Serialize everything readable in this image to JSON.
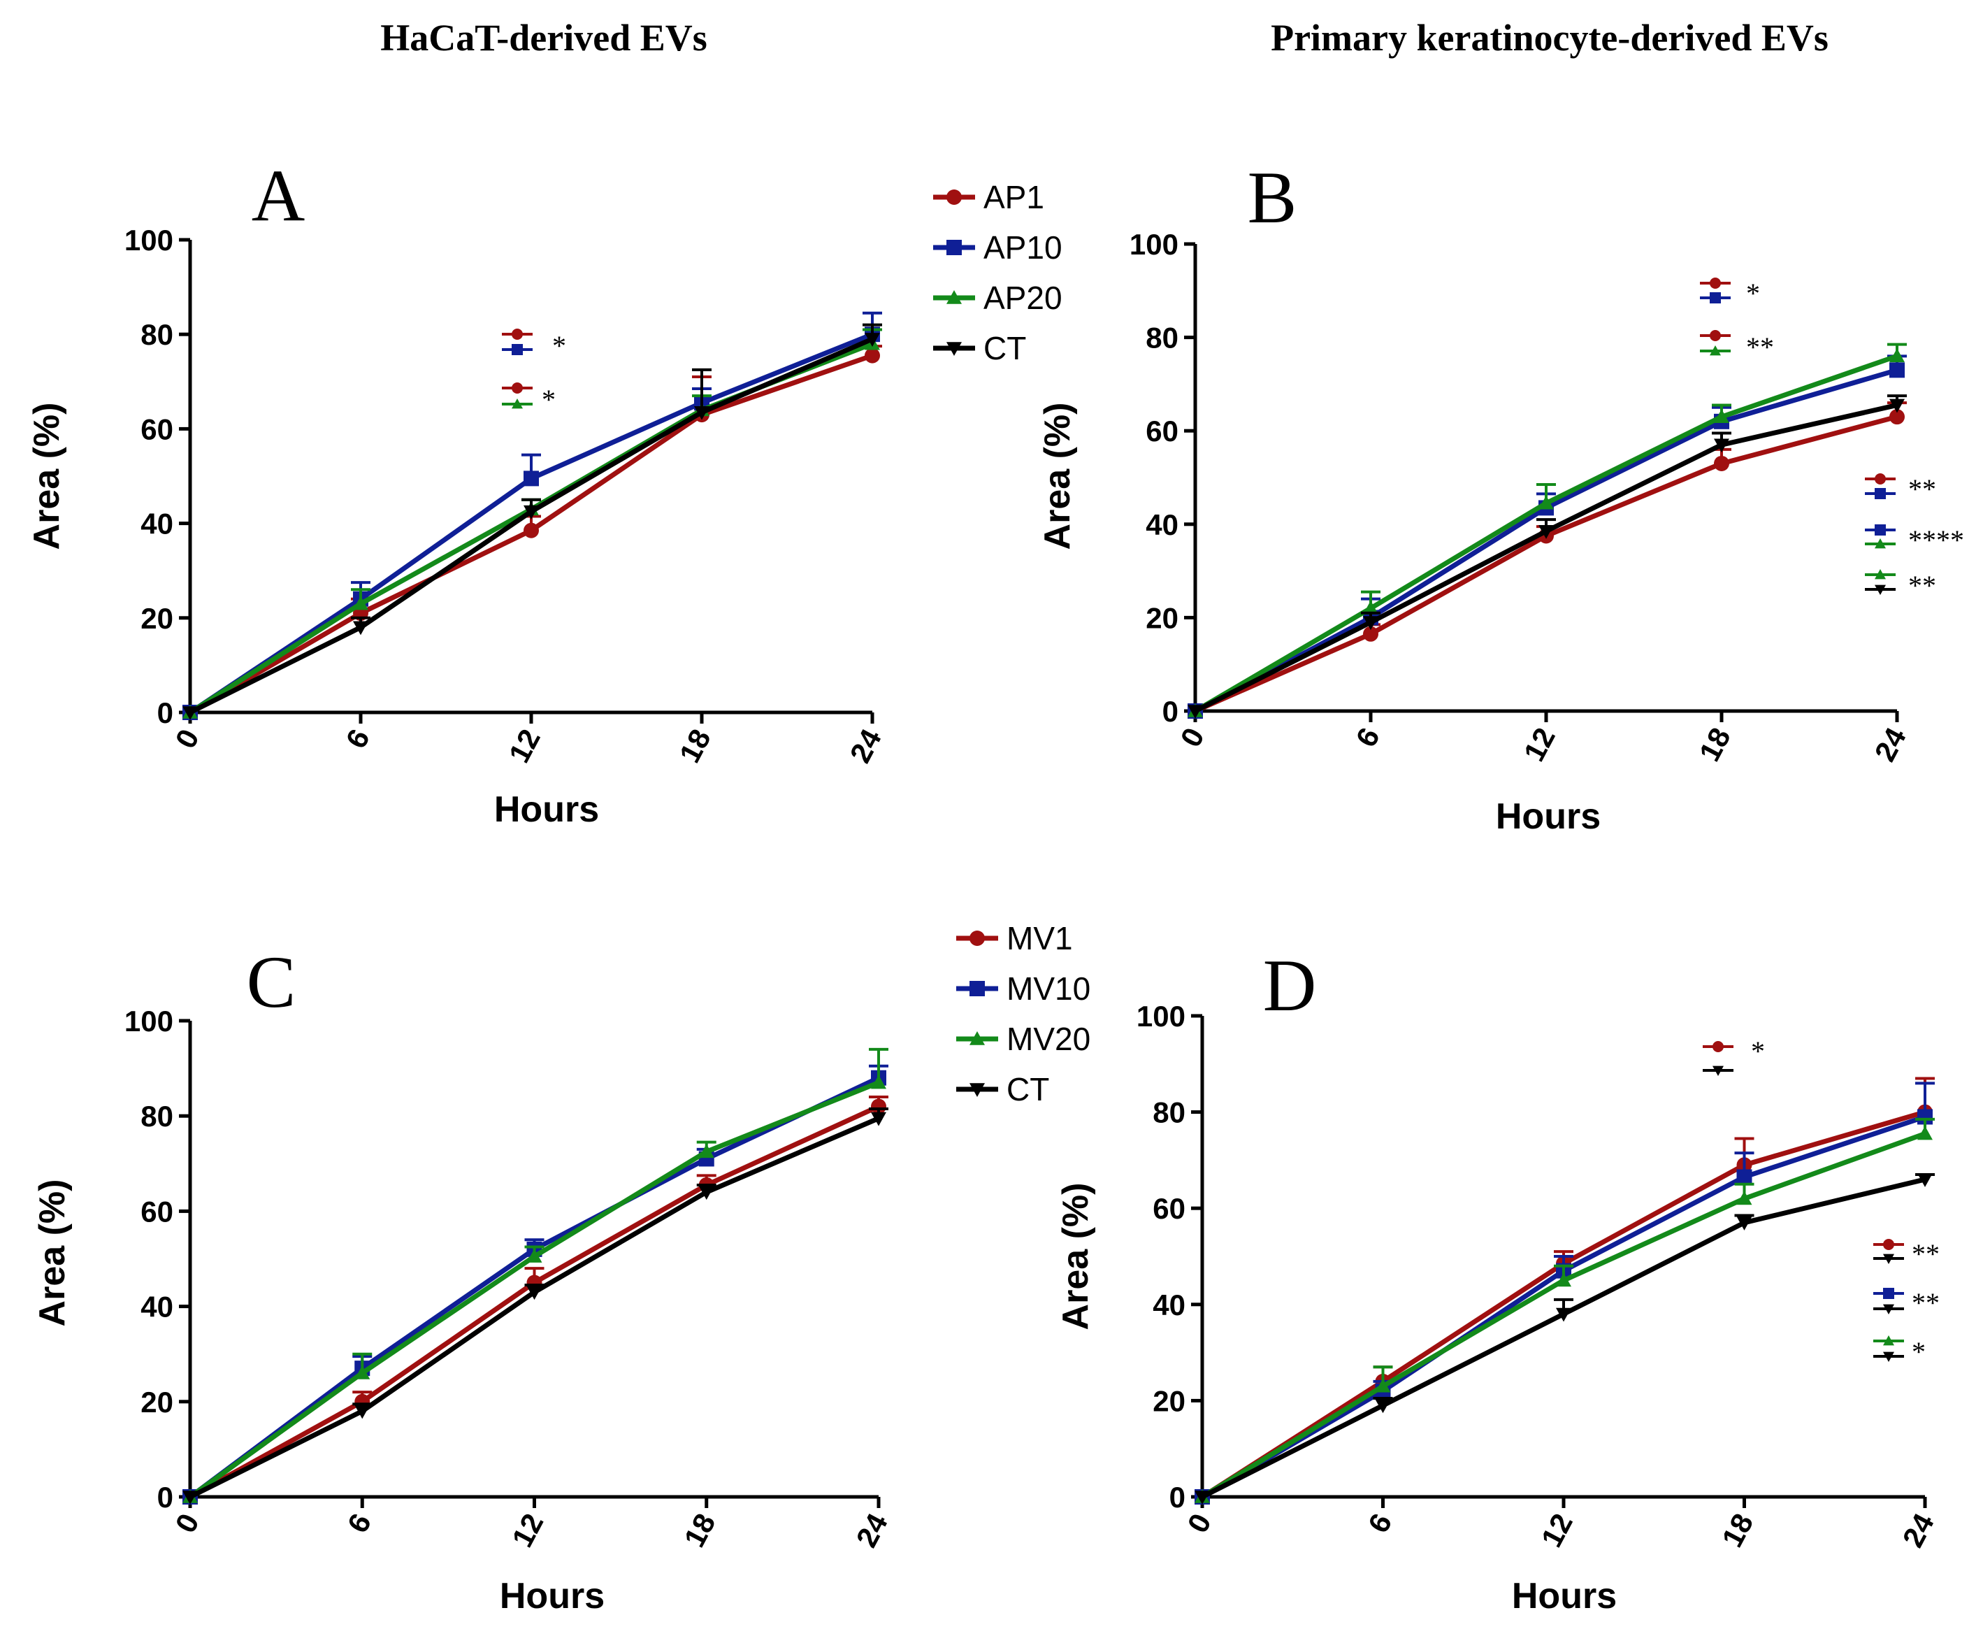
{
  "headings": {
    "left": "HaCaT-derived EVs",
    "right": "Primary keratinocyte-derived EVs"
  },
  "colors": {
    "red": "#a01010",
    "blue": "#0f1f96",
    "green": "#138a1a",
    "black": "#000000"
  },
  "chart_data": [
    {
      "id": "A",
      "type": "line",
      "title": "A",
      "xlabel": "Hours",
      "ylabel": "Area (%)",
      "categories": [
        "0",
        "6",
        "12",
        "18",
        "24"
      ],
      "x": [
        0,
        6,
        12,
        18,
        24
      ],
      "yticks": [
        "0",
        "20",
        "40",
        "60",
        "80",
        "100"
      ],
      "ylim": [
        0,
        100
      ],
      "legend_position": "top-right",
      "series": [
        {
          "name": "AP1",
          "color": "red",
          "marker": "circle",
          "values": [
            0,
            21,
            38.5,
            63,
            75.5
          ],
          "errors": [
            0,
            3,
            3,
            8,
            2
          ]
        },
        {
          "name": "AP10",
          "color": "blue",
          "marker": "square",
          "values": [
            0,
            24,
            49.5,
            65.5,
            80
          ],
          "errors": [
            0,
            3.5,
            5,
            3,
            4.5
          ]
        },
        {
          "name": "AP20",
          "color": "green",
          "marker": "triangle",
          "values": [
            0,
            23,
            43,
            64,
            78
          ],
          "errors": [
            0,
            3,
            2,
            3,
            3
          ]
        },
        {
          "name": "CT",
          "color": "black",
          "marker": "triangle-down",
          "values": [
            0,
            18,
            42.5,
            63.5,
            79
          ],
          "errors": [
            0,
            2,
            2.5,
            9,
            3
          ]
        }
      ],
      "annotations": [
        {
          "pair": [
            "red",
            "blue"
          ],
          "markers": [
            "circle",
            "square"
          ],
          "text": "*"
        },
        {
          "pair": [
            "red",
            "green"
          ],
          "markers": [
            "circle",
            "triangle"
          ],
          "text": "*"
        }
      ]
    },
    {
      "id": "B",
      "type": "line",
      "title": "B",
      "xlabel": "Hours",
      "ylabel": "Area (%)",
      "categories": [
        "0",
        "6",
        "12",
        "18",
        "24"
      ],
      "x": [
        0,
        6,
        12,
        18,
        24
      ],
      "yticks": [
        "0",
        "20",
        "40",
        "60",
        "80",
        "100"
      ],
      "ylim": [
        0,
        100
      ],
      "legend_position": "none",
      "series": [
        {
          "name": "AP1",
          "color": "red",
          "marker": "circle",
          "values": [
            0,
            16.5,
            37.5,
            53,
            63
          ],
          "errors": [
            0,
            2,
            2,
            3,
            3
          ]
        },
        {
          "name": "AP10",
          "color": "blue",
          "marker": "square",
          "values": [
            0,
            20,
            43.5,
            62,
            73
          ],
          "errors": [
            0,
            4,
            3,
            3,
            3
          ]
        },
        {
          "name": "AP20",
          "color": "green",
          "marker": "triangle",
          "values": [
            0,
            22,
            44.5,
            63,
            76
          ],
          "errors": [
            0,
            3.5,
            4,
            2.5,
            2.5
          ]
        },
        {
          "name": "CT",
          "color": "black",
          "marker": "triangle-down",
          "values": [
            0,
            19,
            38.5,
            57,
            65.5
          ],
          "errors": [
            0,
            2,
            2.5,
            2.5,
            2
          ]
        }
      ],
      "annotations": [
        {
          "pair": [
            "red",
            "blue"
          ],
          "markers": [
            "circle",
            "square"
          ],
          "text": "*"
        },
        {
          "pair": [
            "red",
            "green"
          ],
          "markers": [
            "circle",
            "triangle"
          ],
          "text": "**"
        },
        {
          "pair": [
            "red",
            "blue"
          ],
          "markers": [
            "circle",
            "square"
          ],
          "text": "**"
        },
        {
          "pair": [
            "blue",
            "green"
          ],
          "markers": [
            "square",
            "triangle"
          ],
          "text": "****"
        },
        {
          "pair": [
            "green",
            "black"
          ],
          "markers": [
            "triangle",
            "triangle-down"
          ],
          "text": "**"
        }
      ]
    },
    {
      "id": "C",
      "type": "line",
      "title": "C",
      "xlabel": "Hours",
      "ylabel": "Area (%)",
      "categories": [
        "0",
        "6",
        "12",
        "18",
        "24"
      ],
      "x": [
        0,
        6,
        12,
        18,
        24
      ],
      "yticks": [
        "0",
        "20",
        "40",
        "60",
        "80",
        "100"
      ],
      "ylim": [
        0,
        100
      ],
      "legend_position": "top-right",
      "series": [
        {
          "name": "MV1",
          "color": "red",
          "marker": "circle",
          "values": [
            0,
            20,
            45,
            65.5,
            82
          ],
          "errors": [
            0,
            2,
            3,
            2,
            2
          ]
        },
        {
          "name": "MV10",
          "color": "blue",
          "marker": "square",
          "values": [
            0,
            27,
            52,
            71,
            88
          ],
          "errors": [
            0,
            2.5,
            2,
            2,
            2.5
          ]
        },
        {
          "name": "MV20",
          "color": "green",
          "marker": "triangle",
          "values": [
            0,
            26,
            50.5,
            72.5,
            87
          ],
          "errors": [
            0,
            4,
            2,
            2,
            7
          ]
        },
        {
          "name": "CT",
          "color": "black",
          "marker": "triangle-down",
          "values": [
            0,
            18,
            43,
            64,
            79.5
          ],
          "errors": [
            0,
            1.5,
            1.5,
            1.5,
            2
          ]
        }
      ],
      "annotations": []
    },
    {
      "id": "D",
      "type": "line",
      "title": "D",
      "xlabel": "Hours",
      "ylabel": "Area (%)",
      "categories": [
        "0",
        "6",
        "12",
        "18",
        "24"
      ],
      "x": [
        0,
        6,
        12,
        18,
        24
      ],
      "yticks": [
        "0",
        "20",
        "40",
        "60",
        "80",
        "100"
      ],
      "ylim": [
        0,
        100
      ],
      "legend_position": "none",
      "series": [
        {
          "name": "MV1",
          "color": "red",
          "marker": "circle",
          "values": [
            0,
            24,
            48.5,
            69,
            80
          ],
          "errors": [
            0,
            3,
            2.5,
            5.5,
            7
          ]
        },
        {
          "name": "MV10",
          "color": "blue",
          "marker": "square",
          "values": [
            0,
            22,
            47,
            66.5,
            79
          ],
          "errors": [
            0,
            2,
            3,
            5,
            7
          ]
        },
        {
          "name": "MV20",
          "color": "green",
          "marker": "triangle",
          "values": [
            0,
            23,
            45,
            62,
            75.5
          ],
          "errors": [
            0,
            4,
            3,
            3,
            3
          ]
        },
        {
          "name": "CT",
          "color": "black",
          "marker": "triangle-down",
          "values": [
            0,
            19,
            38,
            57,
            66
          ],
          "errors": [
            0,
            1.5,
            3,
            1.5,
            1
          ]
        }
      ],
      "annotations": [
        {
          "pair": [
            "red",
            "black"
          ],
          "markers": [
            "circle",
            "triangle-down"
          ],
          "text": "*"
        },
        {
          "pair": [
            "red",
            "black"
          ],
          "markers": [
            "circle",
            "triangle-down"
          ],
          "text": "**"
        },
        {
          "pair": [
            "blue",
            "black"
          ],
          "markers": [
            "square",
            "triangle-down"
          ],
          "text": "**"
        },
        {
          "pair": [
            "green",
            "black"
          ],
          "markers": [
            "triangle",
            "triangle-down"
          ],
          "text": "*"
        }
      ]
    }
  ]
}
